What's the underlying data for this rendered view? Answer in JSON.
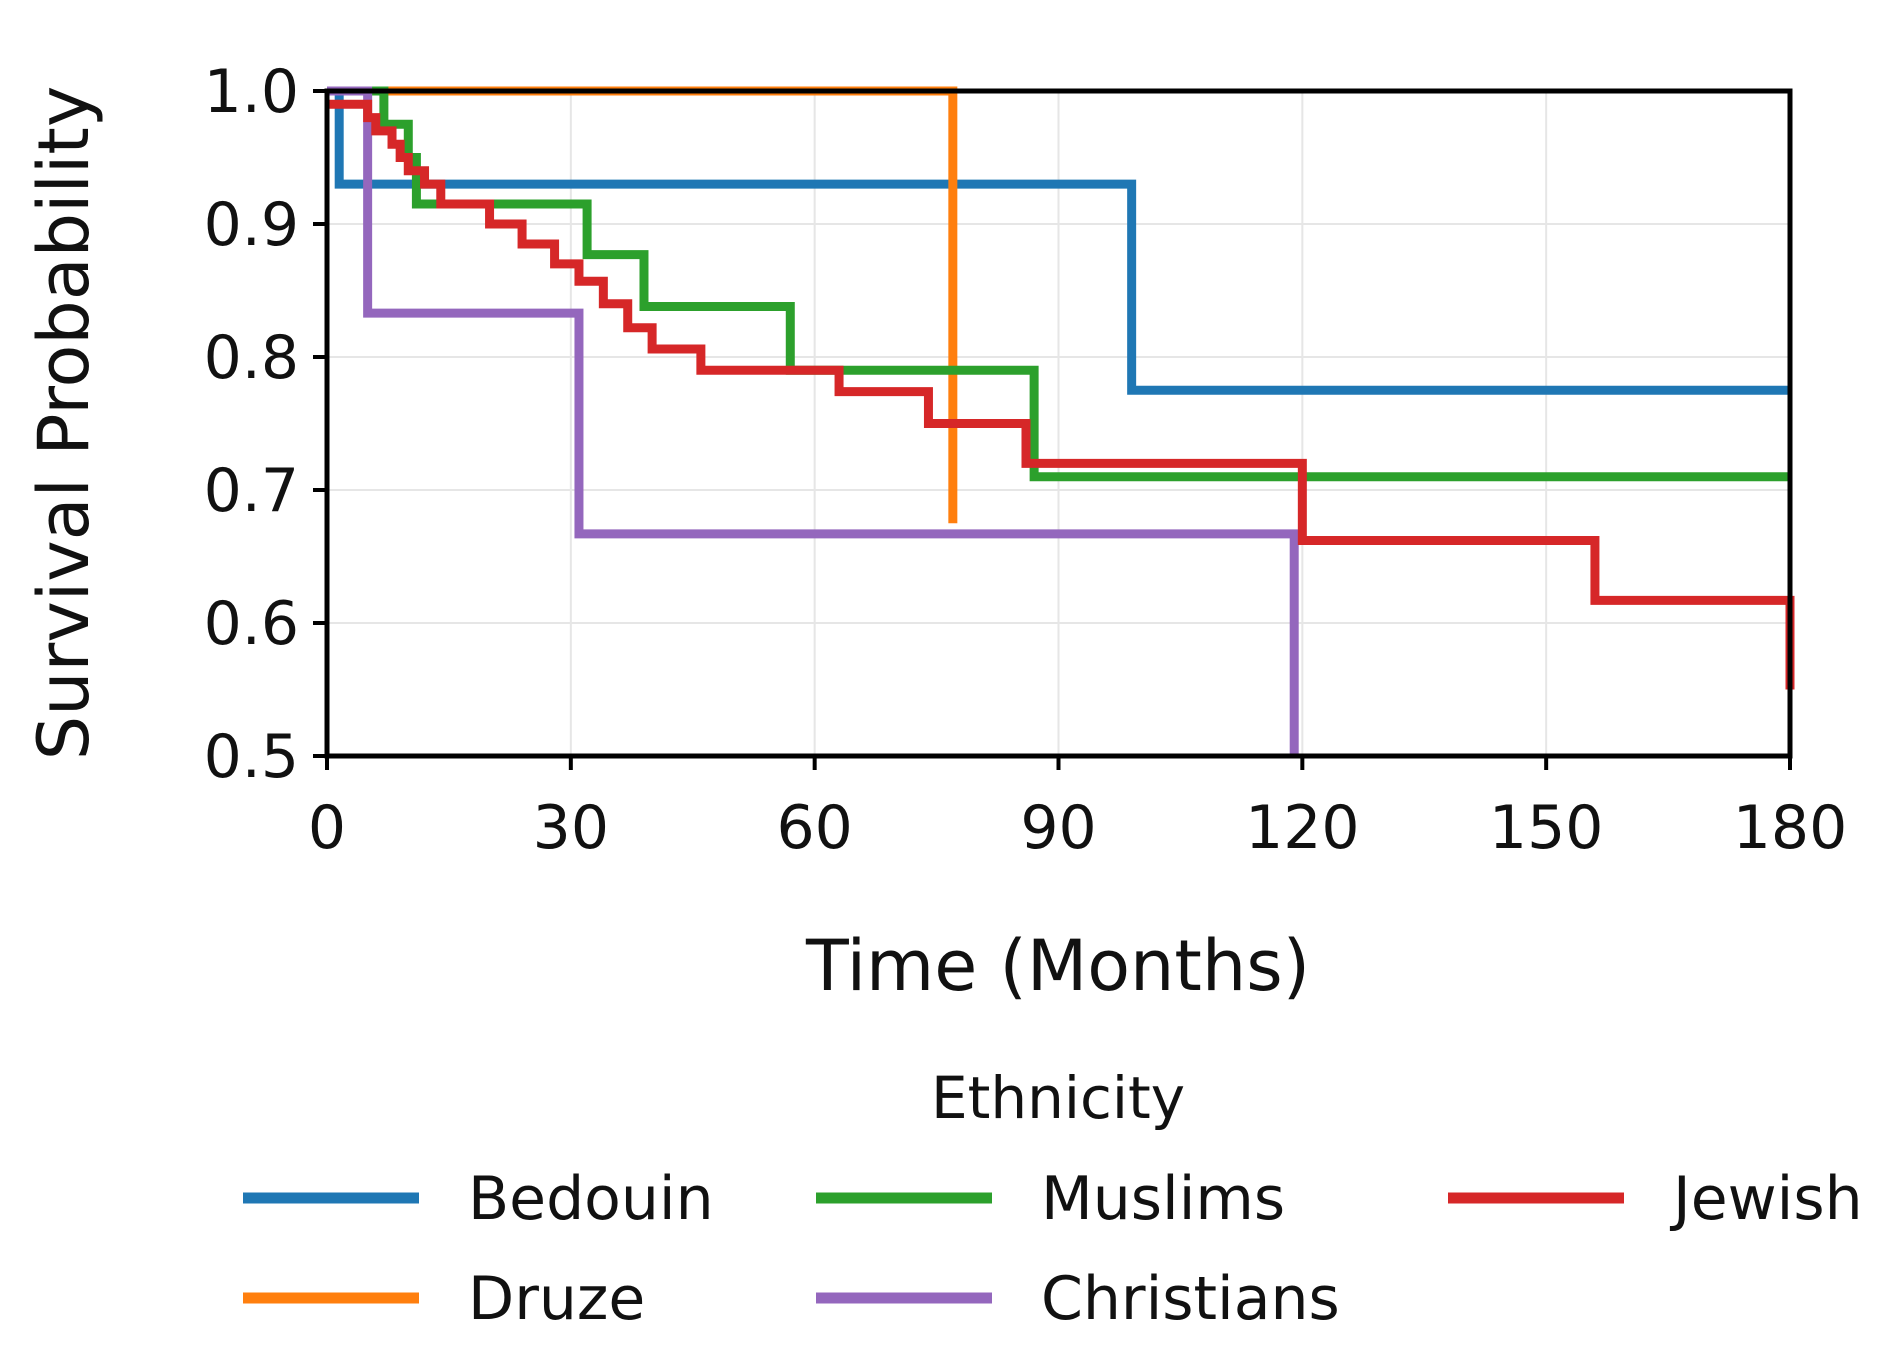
{
  "chart_data": {
    "type": "line",
    "step": true,
    "title": "",
    "xlabel": "Time (Months)",
    "ylabel": "Survival Probability",
    "xlim": [
      0,
      180
    ],
    "ylim": [
      0.5,
      1.0
    ],
    "xticks": [
      0,
      30,
      60,
      90,
      120,
      150,
      180
    ],
    "yticks": [
      0.5,
      0.6,
      0.7,
      0.8,
      0.9,
      1.0
    ],
    "xtick_labels": [
      "0",
      "30",
      "60",
      "90",
      "120",
      "150",
      "180"
    ],
    "ytick_labels": [
      "0.5",
      "0.6",
      "0.7",
      "0.8",
      "0.9",
      "1.0"
    ],
    "grid": true,
    "legend": {
      "title": "Ethnicity",
      "placement": "bottom-center",
      "columns": 3
    },
    "series": [
      {
        "name": "Bedouin",
        "color": "#1f77b4",
        "x": [
          0,
          1.5,
          99,
          180
        ],
        "y": [
          1.0,
          0.93,
          0.775,
          0.775
        ]
      },
      {
        "name": "Druze",
        "color": "#ff7f0e",
        "x": [
          0,
          77
        ],
        "y": [
          1.0,
          0.675
        ]
      },
      {
        "name": "Muslims",
        "color": "#2ca02c",
        "x": [
          0,
          7,
          10,
          11,
          32,
          39,
          57,
          87,
          180
        ],
        "y": [
          1.0,
          0.975,
          0.95,
          0.915,
          0.877,
          0.838,
          0.79,
          0.71,
          0.71
        ]
      },
      {
        "name": "Christians",
        "color": "#9467bd",
        "x": [
          0,
          5,
          31,
          119
        ],
        "y": [
          1.0,
          0.833,
          0.667,
          0.5
        ]
      },
      {
        "name": "Jewish",
        "color": "#d62728",
        "x": [
          0,
          5,
          6,
          8,
          9,
          10,
          12,
          14,
          20,
          24,
          28,
          31,
          34,
          37,
          40,
          46,
          63,
          74,
          86,
          120,
          156,
          180
        ],
        "y": [
          0.99,
          0.98,
          0.97,
          0.96,
          0.95,
          0.94,
          0.93,
          0.915,
          0.9,
          0.885,
          0.87,
          0.857,
          0.84,
          0.822,
          0.806,
          0.79,
          0.774,
          0.75,
          0.72,
          0.662,
          0.617,
          0.55
        ]
      }
    ]
  }
}
